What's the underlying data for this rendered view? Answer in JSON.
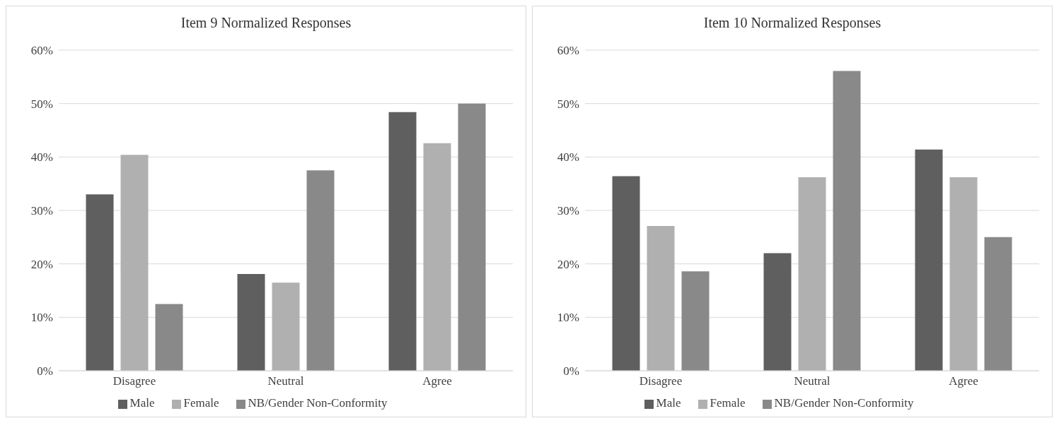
{
  "chart_data": [
    {
      "type": "bar",
      "title": "Item 9 Normalized Responses",
      "categories": [
        "Disagree",
        "Neutral",
        "Agree"
      ],
      "series": [
        {
          "name": "Male",
          "color": "#5f5f5f",
          "values": [
            33.0,
            18.1,
            48.4
          ]
        },
        {
          "name": "Female",
          "color": "#b0b0b0",
          "values": [
            40.4,
            16.5,
            42.6
          ]
        },
        {
          "name": "NB/Gender Non-Conformity",
          "color": "#898989",
          "values": [
            12.5,
            37.5,
            50.0
          ]
        }
      ],
      "ylim": [
        0,
        60
      ],
      "yticks": [
        {
          "value": 0,
          "label": "0%"
        },
        {
          "value": 10,
          "label": "10%"
        },
        {
          "value": 20,
          "label": "20%"
        },
        {
          "value": 30,
          "label": "30%"
        },
        {
          "value": 40,
          "label": "40%"
        },
        {
          "value": 50,
          "label": "50%"
        },
        {
          "value": 60,
          "label": "60%"
        }
      ],
      "grid": "y",
      "legend": "bottom"
    },
    {
      "type": "bar",
      "title": "Item 10 Normalized Responses",
      "categories": [
        "Disagree",
        "Neutral",
        "Agree"
      ],
      "series": [
        {
          "name": "Male",
          "color": "#5f5f5f",
          "values": [
            36.4,
            22.0,
            41.4
          ]
        },
        {
          "name": "Female",
          "color": "#b0b0b0",
          "values": [
            27.1,
            36.2,
            36.2
          ]
        },
        {
          "name": "NB/Gender Non-Conformity",
          "color": "#898989",
          "values": [
            18.6,
            56.1,
            25.0
          ]
        }
      ],
      "ylim": [
        0,
        60
      ],
      "yticks": [
        {
          "value": 0,
          "label": "0%"
        },
        {
          "value": 10,
          "label": "10%"
        },
        {
          "value": 20,
          "label": "20%"
        },
        {
          "value": 30,
          "label": "30%"
        },
        {
          "value": 40,
          "label": "40%"
        },
        {
          "value": 50,
          "label": "50%"
        },
        {
          "value": 60,
          "label": "60%"
        }
      ],
      "grid": "y",
      "legend": "bottom"
    }
  ]
}
